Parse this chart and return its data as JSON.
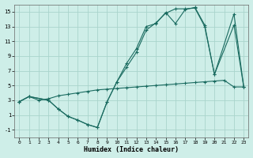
{
  "xlabel": "Humidex (Indice chaleur)",
  "bg_color": "#ceeee8",
  "grid_color": "#aad4cc",
  "line_color": "#1a6b60",
  "xlim": [
    -0.5,
    23.5
  ],
  "ylim": [
    -2,
    16
  ],
  "xticks": [
    0,
    1,
    2,
    3,
    4,
    5,
    6,
    7,
    8,
    9,
    10,
    11,
    12,
    13,
    14,
    15,
    16,
    17,
    18,
    19,
    20,
    21,
    22,
    23
  ],
  "yticks": [
    -1,
    1,
    3,
    5,
    7,
    9,
    11,
    13,
    15
  ],
  "line1_x": [
    0,
    1,
    2,
    3,
    4,
    5,
    6,
    7,
    8,
    9,
    10,
    11,
    12,
    13,
    14,
    15,
    16,
    17,
    18,
    19,
    20,
    21,
    22,
    23
  ],
  "line1_y": [
    2.8,
    3.5,
    3.0,
    3.2,
    3.6,
    3.8,
    4.0,
    4.2,
    4.4,
    4.5,
    4.6,
    4.7,
    4.8,
    4.9,
    5.0,
    5.1,
    5.2,
    5.3,
    5.4,
    5.5,
    5.6,
    5.7,
    4.8,
    4.8
  ],
  "line2_x": [
    0,
    1,
    3,
    4,
    5,
    6,
    7,
    8,
    9,
    10,
    11,
    12,
    13,
    14,
    15,
    16,
    17,
    18,
    19,
    20,
    22,
    23
  ],
  "line2_y": [
    2.8,
    3.5,
    3.0,
    1.8,
    0.8,
    0.3,
    -0.3,
    -0.7,
    2.8,
    5.5,
    8.0,
    10.0,
    13.0,
    13.4,
    14.9,
    13.4,
    15.3,
    15.6,
    13.2,
    6.5,
    14.7,
    4.8
  ],
  "line3_x": [
    0,
    1,
    3,
    4,
    5,
    6,
    7,
    8,
    9,
    10,
    11,
    12,
    13,
    14,
    15,
    16,
    17,
    18,
    19,
    20,
    22,
    23
  ],
  "line3_y": [
    2.8,
    3.5,
    3.0,
    1.8,
    0.8,
    0.3,
    -0.3,
    -0.7,
    2.8,
    5.5,
    7.5,
    9.5,
    12.5,
    13.5,
    14.8,
    15.4,
    15.4,
    15.5,
    13.0,
    6.5,
    13.2,
    4.8
  ]
}
